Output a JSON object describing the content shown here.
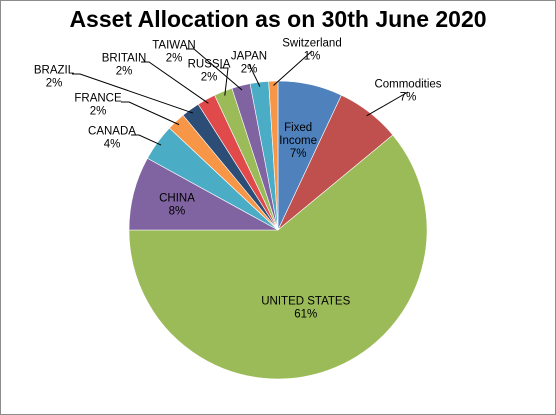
{
  "chart_data": {
    "type": "pie",
    "title": "Asset Allocation as on 30th June 2020",
    "slices": [
      {
        "label": "Fixed Income",
        "value": 7,
        "pct_text": "7%",
        "color": "#4f81bd"
      },
      {
        "label": "Commodities",
        "value": 7,
        "pct_text": "7%",
        "color": "#c0504d"
      },
      {
        "label": "UNITED STATES",
        "value": 61,
        "pct_text": "61%",
        "color": "#9bbb59"
      },
      {
        "label": "CHINA",
        "value": 8,
        "pct_text": "8%",
        "color": "#8064a2"
      },
      {
        "label": "CANADA",
        "value": 4,
        "pct_text": "4%",
        "color": "#4bacc6"
      },
      {
        "label": "FRANCE",
        "value": 2,
        "pct_text": "2%",
        "color": "#f79646"
      },
      {
        "label": "BRAZIL",
        "value": 2,
        "pct_text": "2%",
        "color": "#2c4d75"
      },
      {
        "label": "BRITAIN",
        "value": 2,
        "pct_text": "2%",
        "color": "#e04a4a"
      },
      {
        "label": "RUSSIA",
        "value": 2,
        "pct_text": "2%",
        "color": "#9bbb59"
      },
      {
        "label": "TAIWAN",
        "value": 2,
        "pct_text": "2%",
        "color": "#8064a2"
      },
      {
        "label": "JAPAN",
        "value": 2,
        "pct_text": "2%",
        "color": "#4bacc6"
      },
      {
        "label": "Switzerland",
        "value": 1,
        "pct_text": "1%",
        "color": "#f79646"
      }
    ]
  }
}
